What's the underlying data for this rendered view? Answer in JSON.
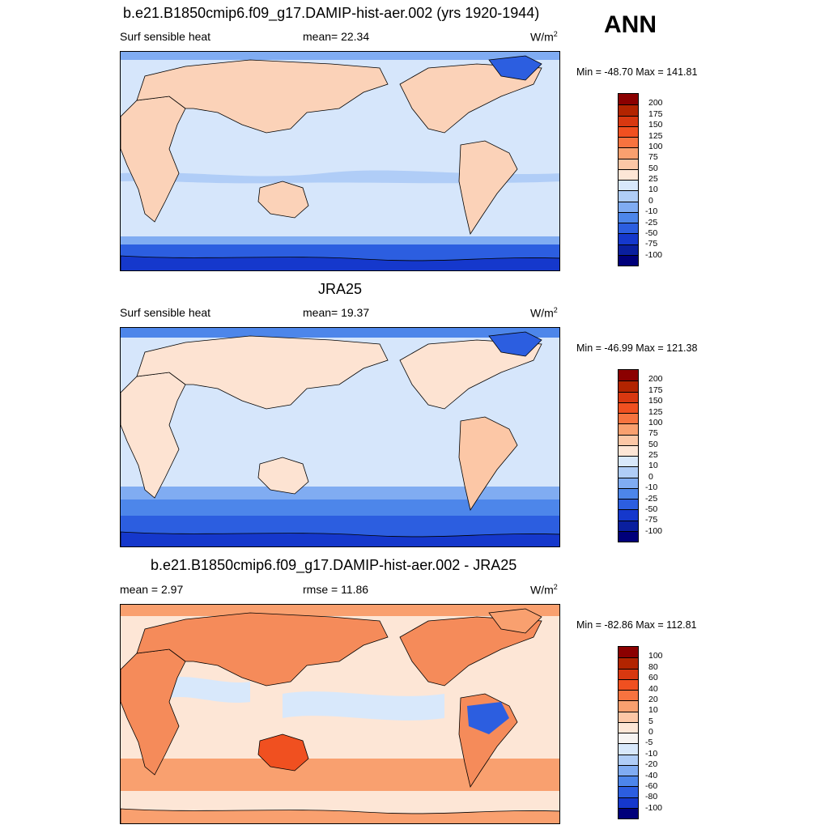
{
  "season": "ANN",
  "unit_base": "W/m",
  "unit_exp": "2",
  "panels": [
    {
      "title": "b.e21.B1850cmip6.f09_g17.DAMIP-hist-aer.002 (yrs 1920-1944)",
      "left_label": "Surf sensible heat",
      "center_label": "mean=  22.34",
      "minmax": "Min = -48.70 Max = 141.81",
      "levels": [
        "200",
        "175",
        "150",
        "125",
        "100",
        "75",
        "50",
        "25",
        "10",
        "0",
        "-10",
        "-25",
        "-50",
        "-75",
        "-100"
      ],
      "colors": [
        "#8b0000",
        "#b22400",
        "#d83810",
        "#f05020",
        "#f7733f",
        "#f9a06f",
        "#fcc7a6",
        "#fde6d6",
        "#d8e8fb",
        "#b0cdf7",
        "#80acf2",
        "#4d86ea",
        "#2c5ee0",
        "#1538cc",
        "#0a1f9e",
        "#00007a"
      ],
      "ocean": "#d6e6fb",
      "land": "#fbd2b8"
    },
    {
      "title": "JRA25",
      "left_label": "Surf sensible heat",
      "center_label": "mean=  19.37",
      "minmax": "Min = -46.99 Max = 121.38",
      "levels": [
        "200",
        "175",
        "150",
        "125",
        "100",
        "75",
        "50",
        "25",
        "10",
        "0",
        "-10",
        "-25",
        "-50",
        "-75",
        "-100"
      ],
      "colors": [
        "#8b0000",
        "#b22400",
        "#d83810",
        "#f05020",
        "#f7733f",
        "#f9a06f",
        "#fcc7a6",
        "#fde6d6",
        "#d8e8fb",
        "#b0cdf7",
        "#80acf2",
        "#4d86ea",
        "#2c5ee0",
        "#1538cc",
        "#0a1f9e",
        "#00007a"
      ],
      "ocean": "#d6e6fb",
      "land": "#fde3d2"
    },
    {
      "title": "b.e21.B1850cmip6.f09_g17.DAMIP-hist-aer.002 - JRA25",
      "left_label": "mean =   2.97",
      "center_label": "rmse =  11.86",
      "minmax": "Min = -82.86 Max = 112.81",
      "levels": [
        "100",
        "80",
        "60",
        "40",
        "20",
        "10",
        "5",
        "0",
        "-5",
        "-10",
        "-20",
        "-40",
        "-60",
        "-80",
        "-100"
      ],
      "colors": [
        "#8b0000",
        "#b22400",
        "#d83810",
        "#f05020",
        "#f7733f",
        "#f9a06f",
        "#fcc7a6",
        "#fde6d6",
        "#f7f4f2",
        "#d8e8fb",
        "#b0cdf7",
        "#80acf2",
        "#4d86ea",
        "#2c5ee0",
        "#1538cc",
        "#00007a"
      ],
      "ocean": "#fde6d6",
      "land": "#f58b5a"
    }
  ]
}
